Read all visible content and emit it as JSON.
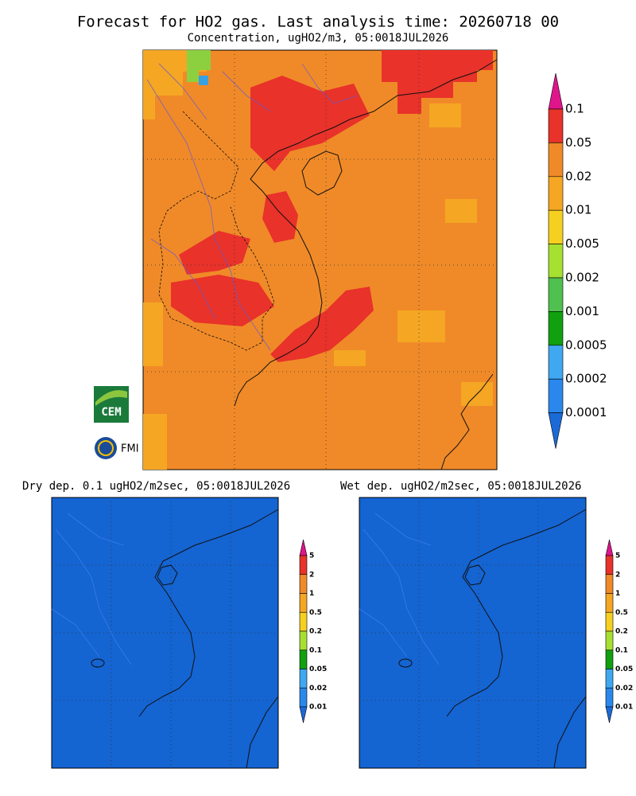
{
  "header": {
    "title": "Forecast for HO2 gas. Last analysis time: 20260718 00",
    "subtitle": "Concentration, ugHO2/m3, 05:0018JUL2026"
  },
  "main_colorbar": {
    "labels": [
      "0.1",
      "0.05",
      "0.02",
      "0.01",
      "0.005",
      "0.002",
      "0.001",
      "0.0005",
      "0.0002",
      "0.0001"
    ]
  },
  "panels": [
    {
      "title": "Dry dep. 0.1 ugHO2/m2sec, 05:0018JUL2026",
      "colorbar_labels": [
        "5",
        "2",
        "1",
        "0.5",
        "0.2",
        "0.1",
        "0.05",
        "0.02",
        "0.01"
      ]
    },
    {
      "title": "Wet dep. ugHO2/m2sec, 05:0018JUL2026",
      "colorbar_labels": [
        "5",
        "2",
        "1",
        "0.5",
        "0.2",
        "0.1",
        "0.05",
        "0.02",
        "0.01"
      ]
    }
  ],
  "logos": [
    "CEM",
    "FMI"
  ]
}
